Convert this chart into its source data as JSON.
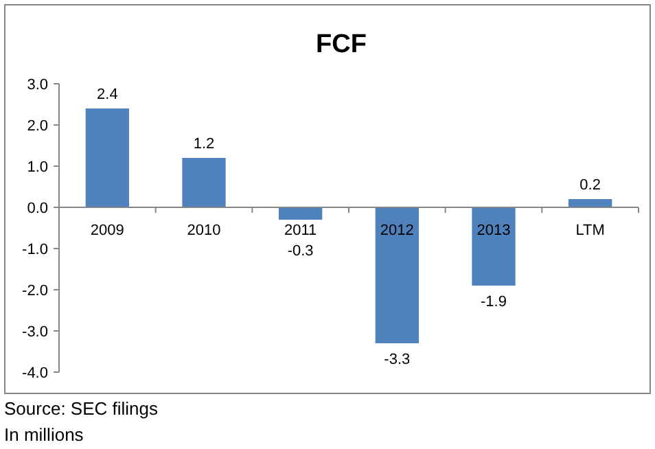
{
  "chart_data": {
    "type": "bar",
    "title": "FCF",
    "categories": [
      "2009",
      "2010",
      "2011",
      "2012",
      "2013",
      "LTM"
    ],
    "values": [
      2.4,
      1.2,
      -0.3,
      -3.3,
      -1.9,
      0.2
    ],
    "value_labels": [
      "2.4",
      "1.2",
      "-0.3",
      "-3.3",
      "-1.9",
      "0.2"
    ],
    "color": "#4f81bd",
    "ylim": [
      -4,
      3
    ],
    "yticks": [
      {
        "value": -4,
        "label": "-4.0"
      },
      {
        "value": -3,
        "label": "-3.0"
      },
      {
        "value": -2,
        "label": "-2.0"
      },
      {
        "value": -1,
        "label": "-1.0"
      },
      {
        "value": 0,
        "label": "0.0"
      },
      {
        "value": 1,
        "label": "1.0"
      },
      {
        "value": 2,
        "label": "2.0"
      },
      {
        "value": 3,
        "label": "3.0"
      }
    ],
    "annotations": [
      "Source: SEC filings",
      "In millions"
    ]
  }
}
